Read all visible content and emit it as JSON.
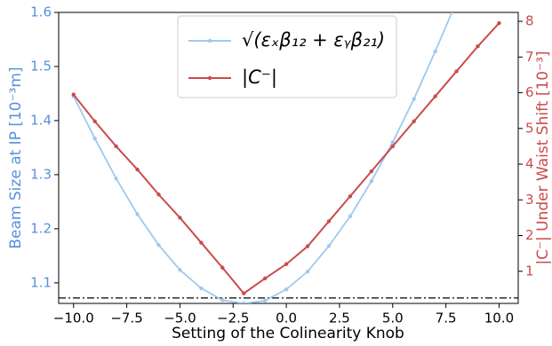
{
  "chart_data": {
    "type": "line",
    "x_label": "Setting of the Colinearity Knob",
    "y_label": "Beam Size at IP [10⁻³m]",
    "y2_label": "|C⁻| Under Waist Shift [10⁻³]",
    "x": [
      -10,
      -9,
      -8,
      -7,
      -6,
      -5,
      -4,
      -3,
      -2,
      -1,
      0,
      1,
      2,
      3,
      4,
      5,
      6,
      7,
      8,
      9,
      10
    ],
    "series": [
      {
        "name": "√(εₓβ₁₂ + εᵧβ₂₁)",
        "color": "#9fc9ee",
        "axis": "y",
        "values": [
          1.445,
          1.367,
          1.293,
          1.227,
          1.17,
          1.124,
          1.09,
          1.068,
          1.062,
          1.067,
          1.088,
          1.121,
          1.168,
          1.223,
          1.288,
          1.36,
          1.44,
          1.528,
          1.62,
          null,
          null
        ]
      },
      {
        "name": "|C⁻|",
        "color": "#c94c4c",
        "axis": "y2",
        "values": [
          5.95,
          5.2,
          4.5,
          3.85,
          3.15,
          2.5,
          1.8,
          1.1,
          0.38,
          0.8,
          1.2,
          1.7,
          2.4,
          3.1,
          3.8,
          4.5,
          5.2,
          5.9,
          6.6,
          7.3,
          7.95
        ]
      }
    ],
    "reference_line": 1.072,
    "xlim": [
      -10.7,
      10.9
    ],
    "xticks": [
      {
        "value": -10,
        "label": "−10.0"
      },
      {
        "value": -7.5,
        "label": "−7.5"
      },
      {
        "value": -5,
        "label": "−5.0"
      },
      {
        "value": -2.5,
        "label": "−2.5"
      },
      {
        "value": 0,
        "label": "0.0"
      },
      {
        "value": 2.5,
        "label": "2.5"
      },
      {
        "value": 5,
        "label": "5.0"
      },
      {
        "value": 7.5,
        "label": "7.5"
      },
      {
        "value": 10,
        "label": "10.0"
      }
    ],
    "ylim": [
      1.062,
      1.6
    ],
    "yticks": [
      1.1,
      1.2,
      1.3,
      1.4,
      1.5,
      1.6
    ],
    "y2lim": [
      0.1,
      8.25
    ],
    "y2ticks": [
      1,
      2,
      3,
      4,
      5,
      6,
      7,
      8
    ],
    "y_color": "#5a8fe0",
    "y2_color": "#c94c4c",
    "legend": "upper center"
  }
}
